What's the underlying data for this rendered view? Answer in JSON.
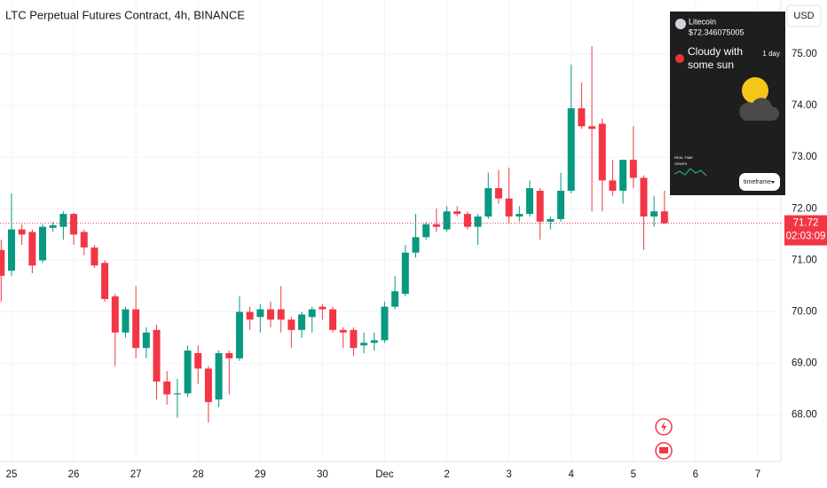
{
  "chart_data": {
    "type": "candlestick",
    "title": "LTC Perpetual Futures Contract, 4h, BINANCE",
    "categories": [
      null,
      "25",
      null,
      null,
      null,
      null,
      null,
      "26",
      null,
      null,
      null,
      null,
      null,
      "27",
      null,
      null,
      null,
      null,
      null,
      "28",
      null,
      null,
      null,
      null,
      null,
      "29",
      null,
      null,
      null,
      null,
      null,
      "30",
      null,
      null,
      null,
      null,
      null,
      "Dec",
      null,
      null,
      null,
      null,
      null,
      "2",
      null,
      null,
      null,
      null,
      null,
      "3",
      null,
      null,
      null,
      null,
      null,
      "4",
      null,
      null,
      null,
      null,
      null,
      "5",
      null,
      null,
      null,
      null,
      null,
      "6",
      null,
      null,
      null,
      null,
      null,
      "7",
      null,
      null
    ],
    "open": [
      71.2,
      70.8,
      71.6,
      71.55,
      71.0,
      71.63,
      71.65,
      71.9,
      71.55,
      71.25,
      70.95,
      70.3,
      69.6,
      70.05,
      69.3,
      69.65,
      68.65,
      68.4,
      68.42,
      69.2,
      68.9,
      68.3,
      69.2,
      69.1,
      70.0,
      69.9,
      70.05,
      70.05,
      69.85,
      69.65,
      69.9,
      70.1,
      70.05,
      69.65,
      69.65,
      69.35,
      69.4,
      69.45,
      70.1,
      70.35,
      71.15,
      71.45,
      71.7,
      71.6,
      71.95,
      71.9,
      71.65,
      71.85,
      72.4,
      72.2,
      71.85,
      71.9,
      72.35,
      71.75,
      71.8,
      72.35,
      73.95,
      73.6,
      73.65,
      72.55,
      72.35,
      72.95,
      72.6,
      71.85,
      71.95,
      null,
      null,
      null,
      null,
      null,
      null,
      null,
      null,
      null,
      null,
      null
    ],
    "high": [
      71.4,
      72.3,
      71.7,
      71.6,
      71.7,
      71.75,
      71.95,
      71.92,
      71.6,
      71.3,
      71.0,
      70.35,
      70.1,
      70.5,
      69.7,
      69.75,
      68.85,
      68.7,
      69.35,
      69.35,
      68.95,
      69.25,
      69.25,
      70.3,
      70.1,
      70.15,
      70.2,
      70.5,
      69.9,
      70.0,
      70.1,
      70.15,
      70.1,
      69.7,
      69.7,
      69.6,
      69.6,
      70.2,
      70.7,
      71.3,
      71.9,
      71.75,
      72.0,
      72.05,
      72.05,
      71.95,
      71.9,
      72.7,
      72.75,
      72.8,
      72.05,
      72.55,
      72.4,
      71.85,
      72.7,
      74.8,
      74.45,
      75.15,
      73.75,
      72.95,
      72.95,
      73.6,
      72.65,
      72.25,
      72.35,
      null,
      null,
      null,
      null,
      null,
      null,
      null,
      null,
      null,
      null,
      null
    ],
    "low": [
      70.2,
      70.7,
      71.3,
      70.75,
      70.95,
      71.55,
      71.4,
      71.3,
      71.1,
      70.85,
      70.2,
      68.95,
      69.5,
      69.1,
      69.1,
      68.3,
      68.2,
      67.95,
      68.35,
      68.6,
      67.85,
      68.15,
      68.4,
      69.05,
      69.65,
      69.6,
      69.7,
      69.6,
      69.3,
      69.5,
      69.6,
      69.85,
      69.6,
      69.3,
      69.15,
      69.2,
      69.25,
      69.4,
      70.05,
      70.3,
      71.05,
      71.4,
      71.55,
      71.55,
      71.85,
      71.6,
      71.3,
      71.8,
      72.1,
      71.7,
      71.75,
      71.85,
      71.4,
      71.6,
      71.75,
      72.3,
      73.55,
      71.95,
      71.95,
      72.25,
      72.1,
      72.4,
      71.2,
      71.65,
      71.7,
      null,
      null,
      null,
      null,
      null,
      null,
      null,
      null,
      null,
      null,
      null
    ],
    "close": [
      70.7,
      71.6,
      71.5,
      70.9,
      71.65,
      71.68,
      71.9,
      71.5,
      71.25,
      70.9,
      70.25,
      69.6,
      70.05,
      69.3,
      69.6,
      68.65,
      68.4,
      68.42,
      69.25,
      68.9,
      68.25,
      69.2,
      69.1,
      70.0,
      69.85,
      70.05,
      69.85,
      69.85,
      69.65,
      69.95,
      70.05,
      70.05,
      69.65,
      69.6,
      69.3,
      69.4,
      69.45,
      70.1,
      70.4,
      71.15,
      71.45,
      71.7,
      71.65,
      71.95,
      71.9,
      71.65,
      71.85,
      72.4,
      72.2,
      71.85,
      71.9,
      72.4,
      71.75,
      71.8,
      72.35,
      73.95,
      73.6,
      73.55,
      72.55,
      72.35,
      72.95,
      72.6,
      71.85,
      71.95,
      71.72,
      null,
      null,
      null,
      null,
      null,
      null,
      null,
      null,
      null,
      null,
      null
    ],
    "up_color": "#089981",
    "down_color": "#f23645",
    "ylim": [
      67.1,
      76.05
    ],
    "yticks": [
      {
        "value": 68,
        "label": "68.00"
      },
      {
        "value": 69,
        "label": "69.00"
      },
      {
        "value": 70,
        "label": "70.00"
      },
      {
        "value": 71,
        "label": "71.00"
      },
      {
        "value": 72,
        "label": "72.00"
      },
      {
        "value": 73,
        "label": "73.00"
      },
      {
        "value": 74,
        "label": "74.00"
      },
      {
        "value": 75,
        "label": "75.00"
      }
    ],
    "grid": true,
    "last_price": 71.72,
    "countdown": "02:03:09",
    "currency": "USD"
  },
  "widget": {
    "coin": "Litecoin",
    "price": "$72.346075005",
    "forecast": "Cloudy with some sun",
    "period": "1 day",
    "graph_label_1": "REAL TIME",
    "graph_label_2": "GRAPH",
    "button": "timeframe"
  }
}
